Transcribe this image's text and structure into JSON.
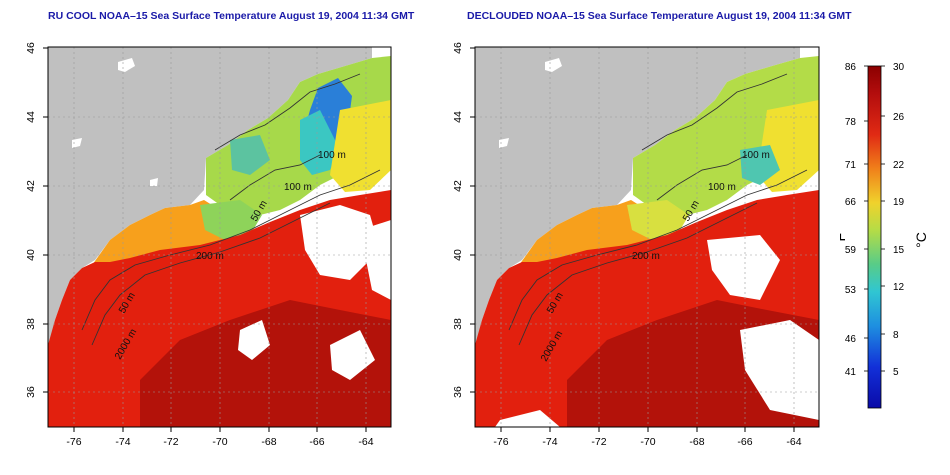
{
  "panels": [
    {
      "title": "RU COOL NOAA–15 Sea Surface Temperature August 19, 2004 11:34 GMT",
      "x_ticks": [
        "-76",
        "-74",
        "-72",
        "-70",
        "-68",
        "-66",
        "-64"
      ],
      "y_ticks": [
        "36",
        "38",
        "40",
        "42",
        "44",
        "46"
      ],
      "contour_labels": [
        "100 m",
        "100 m",
        "50 m",
        "200 m",
        "50 m",
        "2000 m"
      ]
    },
    {
      "title": "DECLOUDED NOAA–15 Sea Surface Temperature August 19, 2004 11:34 GMT",
      "x_ticks": [
        "-76",
        "-74",
        "-72",
        "-70",
        "-68",
        "-66",
        "-64"
      ],
      "y_ticks": [
        "36",
        "38",
        "40",
        "42",
        "44",
        "46"
      ],
      "contour_labels": [
        "100 m",
        "100 m",
        "50 m",
        "200 m",
        "50 m",
        "2000 m"
      ]
    }
  ],
  "colorbar": {
    "fahrenheit_label": "°F",
    "celsius_label": "°C",
    "fahrenheit_ticks": [
      "86",
      "78",
      "71",
      "66",
      "59",
      "53",
      "46",
      "41"
    ],
    "celsius_ticks": [
      "30",
      "26",
      "22",
      "19",
      "15",
      "12",
      "8",
      "5"
    ]
  },
  "colors": {
    "land": "#c0c0c0",
    "ocean_warm": "#e2200e",
    "ocean_hot": "#b3120a",
    "title": "#1a1aa8"
  }
}
